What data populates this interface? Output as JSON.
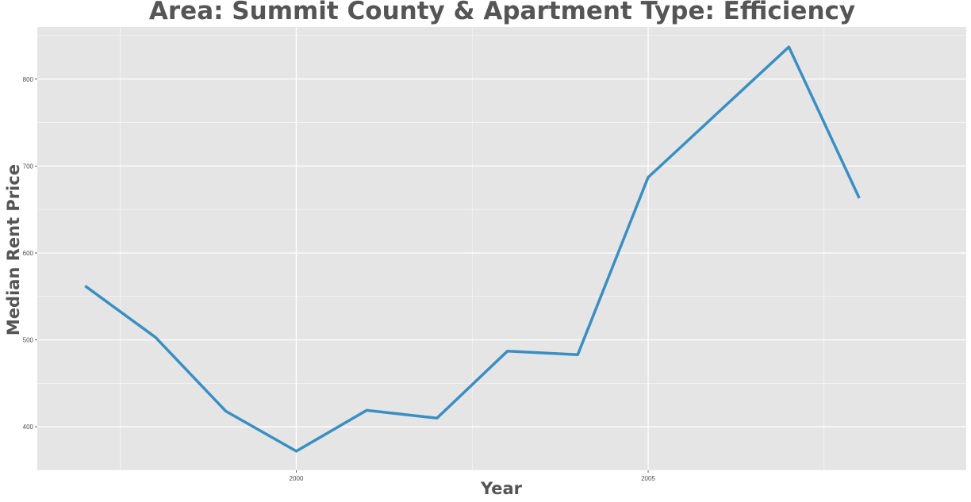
{
  "chart_data": {
    "type": "line",
    "title": "Area: Summit County & Apartment Type: Efficiency",
    "xlabel": "Year",
    "ylabel": "Median Rent Price",
    "x": [
      1997,
      1998,
      1999,
      2000,
      2001,
      2002,
      2003,
      2004,
      2005,
      2006,
      2007,
      2008
    ],
    "series": [
      {
        "values": [
          562,
          503,
          418,
          372,
          419,
          410,
          487,
          483,
          687,
          762,
          837,
          663
        ],
        "color": "#3a8fc2"
      }
    ],
    "x_ticks": [
      2000,
      2005
    ],
    "x_tick_labels": [
      "2000",
      "2005"
    ],
    "y_ticks": [
      400,
      500,
      600,
      700,
      800
    ],
    "y_tick_labels": [
      "400",
      "500",
      "600",
      "700",
      "800"
    ],
    "xlim": [
      1996.32,
      2009.52
    ],
    "ylim": [
      350,
      860
    ],
    "grid": true,
    "background": "#e5e5e5",
    "gridline_color": "#ffffff"
  }
}
